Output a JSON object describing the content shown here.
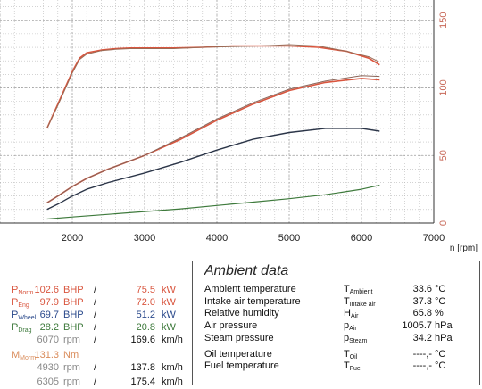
{
  "chart_data": {
    "type": "line",
    "x_axis": {
      "unit_label": "n [rpm]",
      "ticks": [
        "2000",
        "3000",
        "4000",
        "5000",
        "6000",
        "7000"
      ],
      "range": [
        1000,
        7000
      ]
    },
    "y_axis_right": {
      "ticks": [
        "0",
        "50",
        "100",
        "150"
      ],
      "range": [
        0,
        165
      ],
      "color": "#c86a5a"
    },
    "grid": true,
    "series": [
      {
        "key": "torque",
        "color": "#d9553e",
        "width": 1.6,
        "x": [
          1650,
          1800,
          1900,
          2000,
          2100,
          2200,
          2400,
          2600,
          2800,
          3000,
          3400,
          3800,
          4200,
          4600,
          5000,
          5400,
          5800,
          6100,
          6250
        ],
        "y": [
          70,
          88,
          100,
          112,
          122,
          126,
          128,
          129,
          129.5,
          129.5,
          129.5,
          130,
          131,
          131,
          131,
          130,
          127,
          122,
          117
        ]
      },
      {
        "key": "torque_b",
        "color": "#9a6a55",
        "width": 1.0,
        "x": [
          1650,
          1800,
          1900,
          2000,
          2100,
          2200,
          2400,
          2600,
          2800,
          3000,
          3400,
          3800,
          4200,
          4600,
          5000,
          5400,
          5800,
          6100,
          6250
        ],
        "y": [
          70,
          87,
          99,
          111,
          121,
          125,
          127.5,
          128.5,
          129,
          129,
          129,
          130,
          130.5,
          131,
          132,
          131,
          127,
          123,
          119
        ]
      },
      {
        "key": "engine_power",
        "color": "#d9553e",
        "width": 1.6,
        "x": [
          1650,
          1800,
          2000,
          2200,
          2500,
          3000,
          3500,
          4000,
          4500,
          5000,
          5500,
          6000,
          6250
        ],
        "y": [
          15,
          20,
          27,
          33,
          40,
          50,
          62,
          76,
          88,
          98,
          104,
          107,
          106
        ]
      },
      {
        "key": "engine_power_b",
        "color": "#8a6458",
        "width": 1.0,
        "x": [
          1650,
          1800,
          2000,
          2200,
          2500,
          3000,
          3500,
          4000,
          4500,
          5000,
          5500,
          6000,
          6250
        ],
        "y": [
          15,
          20,
          27,
          33,
          40,
          50,
          63,
          77,
          89,
          99,
          105,
          109,
          108.5
        ]
      },
      {
        "key": "wheel_power",
        "color": "#2b3548",
        "width": 1.4,
        "x": [
          1650,
          1800,
          2000,
          2200,
          2500,
          3000,
          3500,
          4000,
          4500,
          5000,
          5500,
          6000,
          6250
        ],
        "y": [
          10,
          14,
          20,
          25,
          30,
          37,
          45,
          54,
          62,
          67,
          70,
          70,
          68
        ]
      },
      {
        "key": "drag_power",
        "color": "#3e7a3c",
        "width": 1.2,
        "x": [
          1650,
          2000,
          2500,
          3000,
          3500,
          4000,
          4500,
          5000,
          5500,
          6000,
          6250
        ],
        "y": [
          3,
          4.5,
          6.5,
          8.5,
          10.5,
          13,
          15.5,
          18,
          21,
          25,
          28
        ]
      }
    ]
  },
  "measurements": [
    {
      "sym": "P",
      "sub": "Norm",
      "v1": "102.6",
      "u1": "BHP",
      "sep": "/",
      "v2": "75.5",
      "u2": "kW",
      "color": "#d9553e"
    },
    {
      "sym": "P",
      "sub": "Eng",
      "v1": "97.9",
      "u1": "BHP",
      "sep": "/",
      "v2": "72.0",
      "u2": "kW",
      "color": "#d9553e"
    },
    {
      "sym": "P",
      "sub": "Wheel",
      "v1": "69.7",
      "u1": "BHP",
      "sep": "/",
      "v2": "51.2",
      "u2": "kW",
      "color": "#2b4a8c"
    },
    {
      "sym": "P",
      "sub": "Drag",
      "v1": "28.2",
      "u1": "BHP",
      "sep": "/",
      "v2": "20.8",
      "u2": "kW",
      "color": "#3e7a3c"
    },
    {
      "sym": "",
      "sub": "",
      "v1": "6070",
      "u1": "rpm",
      "sep": "/",
      "v2": "169.6",
      "u2": "km/h",
      "color": "#888888"
    },
    {
      "sym": "M",
      "sub": "Morm",
      "v1": "131.3",
      "u1": "Nm",
      "sep": "",
      "v2": "",
      "u2": "",
      "color": "#d98b5a"
    },
    {
      "sym": "",
      "sub": "",
      "v1": "4930",
      "u1": "rpm",
      "sep": "/",
      "v2": "137.8",
      "u2": "km/h",
      "color": "#888888"
    },
    {
      "sym": "",
      "sub": "",
      "v1": "6305",
      "u1": "rpm",
      "sep": "/",
      "v2": "175.4",
      "u2": "km/h",
      "color": "#888888"
    }
  ],
  "ambient": {
    "title": "Ambient data",
    "rows": [
      {
        "name": "Ambient temperature",
        "sym": "T",
        "sub": "Ambient",
        "value": "33.6",
        "unit": "°C"
      },
      {
        "name": "Intake air temperature",
        "sym": "T",
        "sub": "Intake air",
        "value": "37.3",
        "unit": "°C"
      },
      {
        "name": "Relative humidity",
        "sym": "H",
        "sub": "Air",
        "value": "65.8",
        "unit": "%"
      },
      {
        "name": "Air pressure",
        "sym": "p",
        "sub": "Air",
        "value": "1005.7",
        "unit": "hPa"
      },
      {
        "name": "Steam pressure",
        "sym": "p",
        "sub": "Steam",
        "value": "34.2",
        "unit": "hPa"
      },
      {
        "name": "Oil temperature",
        "sym": "T",
        "sub": "Oil",
        "value": "----,-",
        "unit": "°C"
      },
      {
        "name": "Fuel temperature",
        "sym": "T",
        "sub": "Fuel",
        "value": "----,-",
        "unit": "°C"
      }
    ]
  }
}
